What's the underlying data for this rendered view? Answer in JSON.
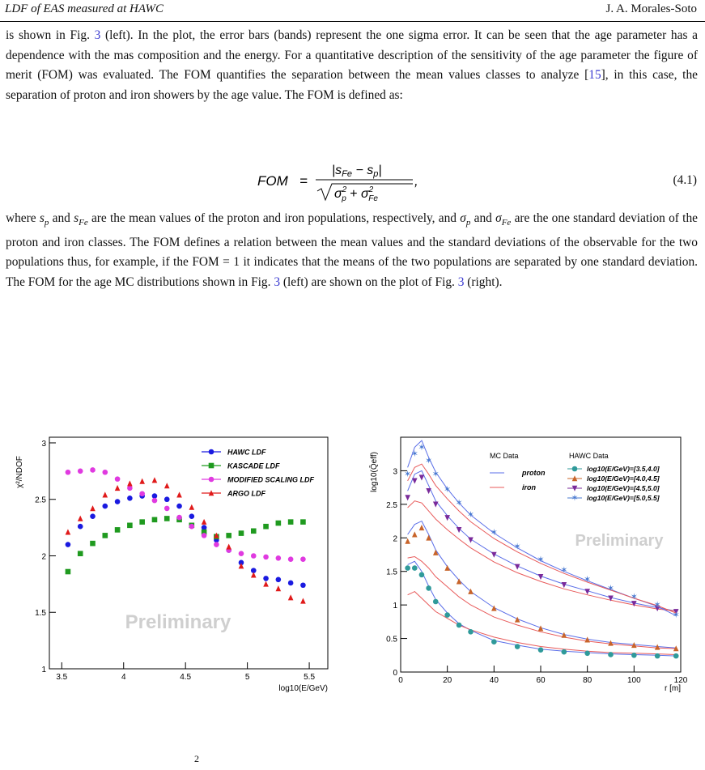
{
  "header": {
    "left": "LDF of EAS measured at HAWC",
    "right": "J. A. Morales-Soto"
  },
  "para1": {
    "t1": "is shown in Fig. ",
    "r1": "3",
    "t2": " (left). In the plot, the error bars (bands) represent the one sigma error. It can be seen that the age parameter has a dependence with the mas composition and the energy. For a quantitative description of the sensitivity of the age parameter the figure of merit (FOM) was evaluated. The FOM quantifies the separation between the mean values classes to analyze [",
    "r2": "15",
    "t3": "], in this case, the separation of proton and iron showers by the age value. The FOM is defined as:"
  },
  "equation": {
    "lhs": "FOM",
    "number": "(4.1)"
  },
  "para2": {
    "t1": " are the mean values of the proton and iron populations, respectively, and ",
    "t2": " are the one standard deviation of the proton and iron classes. The FOM defines a relation between the mean values and the standard deviations of the observable for the two populations thus, for example, if the FOM = 1 it indicates that the means of the two populations are separated by one standard deviation. The FOM for the age MC distributions shown in Fig. ",
    "r1": "3",
    "t3": " (left) are shown on the plot of Fig. ",
    "r2": "3",
    "t4": " (right)."
  },
  "caption_fragment": "2",
  "chart_data": [
    {
      "type": "scatter",
      "ylabel": "χ²/NDOF",
      "xlabel": "log10(E/GeV)",
      "watermark": "Preliminary",
      "xlim": [
        3.4,
        5.65
      ],
      "ylim": [
        1.0,
        3.05
      ],
      "xticks": [
        "3.5",
        "4",
        "4.5",
        "5",
        "5.5"
      ],
      "yticks": [
        "1",
        "1.5",
        "2",
        "2.5",
        "3"
      ],
      "legend_position": "top-right",
      "x": [
        3.55,
        3.65,
        3.75,
        3.85,
        3.95,
        4.05,
        4.15,
        4.25,
        4.35,
        4.45,
        4.55,
        4.65,
        4.75,
        4.85,
        4.95,
        5.05,
        5.15,
        5.25,
        5.35,
        5.45
      ],
      "series": [
        {
          "name": "HAWC LDF",
          "color": "#1a1ae0",
          "marker": "circle",
          "values": [
            2.1,
            2.26,
            2.35,
            2.44,
            2.48,
            2.51,
            2.53,
            2.53,
            2.5,
            2.44,
            2.35,
            2.25,
            2.14,
            2.05,
            1.94,
            1.87,
            1.8,
            1.79,
            1.76,
            1.74
          ]
        },
        {
          "name": "KASCADE LDF",
          "color": "#1f9a1f",
          "marker": "square",
          "values": [
            1.86,
            2.02,
            2.11,
            2.18,
            2.23,
            2.27,
            2.3,
            2.32,
            2.33,
            2.32,
            2.27,
            2.21,
            2.17,
            2.18,
            2.2,
            2.22,
            2.26,
            2.29,
            2.3,
            2.3
          ]
        },
        {
          "name": "MODIFIED SCALING LDF",
          "color": "#e03ae0",
          "marker": "circle",
          "values": [
            2.74,
            2.75,
            2.76,
            2.74,
            2.68,
            2.6,
            2.55,
            2.49,
            2.42,
            2.34,
            2.26,
            2.18,
            2.1,
            2.05,
            2.02,
            2.0,
            1.99,
            1.98,
            1.97,
            1.97
          ]
        },
        {
          "name": "ARGO LDF",
          "color": "#e01a1a",
          "marker": "triangle",
          "values": [
            2.21,
            2.33,
            2.42,
            2.54,
            2.6,
            2.64,
            2.66,
            2.67,
            2.62,
            2.54,
            2.43,
            2.3,
            2.18,
            2.08,
            1.91,
            1.83,
            1.75,
            1.71,
            1.63,
            1.6
          ]
        }
      ]
    },
    {
      "type": "scatter",
      "ylabel": "log10(Q̄eff)",
      "xlabel": "r [m]",
      "watermark": "Preliminary",
      "xlim": [
        0,
        120
      ],
      "ylim": [
        0,
        3.5
      ],
      "xticks": [
        "0",
        "20",
        "40",
        "60",
        "80",
        "100",
        "120"
      ],
      "yticks": [
        "0",
        "0.5",
        "1",
        "1.5",
        "2",
        "2.5",
        "3"
      ],
      "legend_position": "top-right",
      "legend_headers": {
        "mc": "MC Data",
        "hawc": "HAWC Data"
      },
      "mc": [
        {
          "name": "proton",
          "color": "#5a6ee8"
        },
        {
          "name": "iron",
          "color": "#e85a5a"
        }
      ],
      "series": [
        {
          "name": "log10(E/GeV)=[3.5,4.0]",
          "color": "#2f9a9a",
          "marker": "circle",
          "x": [
            3,
            6,
            9,
            12,
            15,
            20,
            25,
            30,
            40,
            50,
            60,
            70,
            80,
            90,
            100,
            110,
            118
          ],
          "values": [
            1.55,
            1.55,
            1.45,
            1.25,
            1.05,
            0.85,
            0.7,
            0.6,
            0.45,
            0.38,
            0.33,
            0.3,
            0.28,
            0.26,
            0.25,
            0.24,
            0.24
          ],
          "proton": [
            1.6,
            1.65,
            1.5,
            1.28,
            1.08,
            0.88,
            0.72,
            0.62,
            0.47,
            0.4,
            0.34,
            0.31,
            0.29,
            0.27,
            0.26,
            0.25,
            0.24
          ],
          "iron": [
            1.15,
            1.2,
            1.1,
            1.0,
            0.9,
            0.8,
            0.7,
            0.63,
            0.52,
            0.44,
            0.38,
            0.34,
            0.31,
            0.29,
            0.28,
            0.27,
            0.26
          ]
        },
        {
          "name": "log10(E/GeV)=[4.0,4.5]",
          "color": "#c8642a",
          "marker": "triangle",
          "x": [
            3,
            6,
            9,
            12,
            15,
            20,
            25,
            30,
            40,
            50,
            60,
            70,
            80,
            90,
            100,
            110,
            118
          ],
          "values": [
            1.95,
            2.05,
            2.15,
            2.0,
            1.78,
            1.55,
            1.35,
            1.2,
            0.95,
            0.78,
            0.65,
            0.55,
            0.48,
            0.43,
            0.4,
            0.37,
            0.35
          ],
          "proton": [
            2.05,
            2.2,
            2.25,
            2.05,
            1.82,
            1.57,
            1.37,
            1.2,
            0.96,
            0.79,
            0.66,
            0.56,
            0.49,
            0.44,
            0.41,
            0.38,
            0.36
          ],
          "iron": [
            1.7,
            1.72,
            1.65,
            1.55,
            1.42,
            1.27,
            1.12,
            1.0,
            0.82,
            0.7,
            0.6,
            0.52,
            0.46,
            0.42,
            0.39,
            0.36,
            0.35
          ]
        },
        {
          "name": "log10(E/GeV)=[4.5,5.0]",
          "color": "#7a2a9a",
          "marker": "triangle-down",
          "x": [
            3,
            6,
            9,
            12,
            15,
            20,
            25,
            30,
            40,
            50,
            60,
            70,
            80,
            90,
            100,
            110,
            118
          ],
          "values": [
            2.6,
            2.85,
            2.9,
            2.7,
            2.5,
            2.3,
            2.12,
            1.97,
            1.75,
            1.57,
            1.42,
            1.3,
            1.2,
            1.1,
            1.02,
            0.95,
            0.9
          ],
          "proton": [
            2.7,
            2.95,
            3.0,
            2.78,
            2.55,
            2.33,
            2.14,
            1.98,
            1.76,
            1.58,
            1.43,
            1.31,
            1.21,
            1.11,
            1.03,
            0.96,
            0.91
          ],
          "iron": [
            2.45,
            2.55,
            2.52,
            2.4,
            2.28,
            2.12,
            1.98,
            1.85,
            1.64,
            1.48,
            1.35,
            1.24,
            1.15,
            1.07,
            1.0,
            0.94,
            0.91
          ]
        },
        {
          "name": "log10(E/GeV)=[5.0,5.5]",
          "color": "#4a7ad0",
          "marker": "star",
          "x": [
            3,
            6,
            9,
            12,
            15,
            20,
            25,
            30,
            40,
            50,
            60,
            70,
            80,
            90,
            100,
            110,
            118
          ],
          "values": [
            2.95,
            3.25,
            3.35,
            3.15,
            2.95,
            2.72,
            2.52,
            2.35,
            2.08,
            1.87,
            1.68,
            1.52,
            1.38,
            1.25,
            1.12,
            1.0,
            0.85
          ],
          "proton": [
            3.05,
            3.35,
            3.45,
            3.2,
            2.98,
            2.73,
            2.52,
            2.34,
            2.07,
            1.85,
            1.66,
            1.5,
            1.36,
            1.23,
            1.1,
            0.98,
            0.84
          ],
          "iron": [
            2.85,
            3.05,
            3.1,
            2.95,
            2.78,
            2.58,
            2.4,
            2.24,
            1.99,
            1.79,
            1.62,
            1.47,
            1.34,
            1.22,
            1.1,
            0.99,
            0.88
          ]
        }
      ]
    }
  ]
}
